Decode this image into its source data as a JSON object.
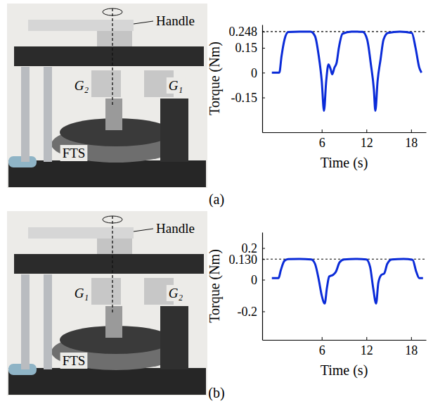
{
  "chart_data": [
    {
      "type": "line",
      "x_label": "Time (s)",
      "y_label": "Torque (Nm)",
      "xlim": [
        -2,
        20
      ],
      "xticks": [
        6,
        12,
        18
      ],
      "ylim": [
        -0.36,
        0.29
      ],
      "yticks": [
        -0.15,
        0,
        0.15,
        0.248
      ],
      "reference": 0.248,
      "x": [
        -0.7,
        0.3,
        0.6,
        1.0,
        1.5,
        3,
        4.5,
        5.1,
        5.6,
        6.0,
        6.3,
        6.6,
        6.9,
        7.2,
        7.4,
        7.7,
        8.0,
        8.3,
        8.8,
        10,
        11.5,
        12.1,
        12.6,
        13.0,
        13.2,
        13.5,
        13.9,
        14.3,
        14.9,
        16.5,
        18.1,
        18.6,
        19.1,
        19.4
      ],
      "series": [
        {
          "color": "#0a2bd8",
          "line_style": "solid",
          "values": [
            0,
            0,
            0.1,
            0.2,
            0.245,
            0.248,
            0.247,
            0.22,
            0.1,
            -0.05,
            -0.23,
            -0.05,
            0.05,
            0.02,
            -0.01,
            0.03,
            0.06,
            0.15,
            0.235,
            0.248,
            0.246,
            0.2,
            0.05,
            -0.1,
            -0.23,
            -0.05,
            0.08,
            0.2,
            0.24,
            0.248,
            0.24,
            0.15,
            0.03,
            0
          ]
        }
      ]
    },
    {
      "type": "line",
      "x_label": "Time (s)",
      "y_label": "Torque (Nm)",
      "xlim": [
        -2,
        20
      ],
      "xticks": [
        6,
        12,
        18
      ],
      "ylim": [
        -0.38,
        0.3
      ],
      "yticks": [
        -0.2,
        0,
        {
          "value": 0.13,
          "label": "0.130"
        },
        0.2
      ],
      "reference": 0.13,
      "x": [
        -0.7,
        0.2,
        0.5,
        1.0,
        1.5,
        3,
        4.6,
        5.1,
        5.6,
        6.0,
        6.4,
        6.7,
        7.0,
        7.5,
        7.9,
        8.4,
        9.0,
        10.5,
        12,
        12.5,
        12.9,
        13.3,
        13.6,
        14.0,
        14.4,
        14.8,
        15.4,
        17,
        18.2,
        18.7,
        19.1,
        19.6
      ],
      "series": [
        {
          "color": "#0a2bd8",
          "line_style": "solid",
          "values": [
            0.01,
            0.01,
            0.06,
            0.12,
            0.13,
            0.131,
            0.128,
            0.1,
            0.0,
            -0.1,
            -0.15,
            -0.05,
            0.02,
            0.03,
            0.05,
            0.11,
            0.128,
            0.131,
            0.128,
            0.08,
            -0.05,
            -0.15,
            -0.02,
            0.03,
            0.04,
            0.1,
            0.128,
            0.131,
            0.126,
            0.05,
            0.01,
            0.01
          ]
        }
      ]
    }
  ],
  "photos": [
    {
      "labels": [
        "Handle",
        "G₂",
        "G₁",
        "FTS"
      ]
    },
    {
      "labels": [
        "Handle",
        "G₁",
        "G₂",
        "FTS"
      ]
    }
  ],
  "captions": [
    "(a)",
    "(b)"
  ]
}
